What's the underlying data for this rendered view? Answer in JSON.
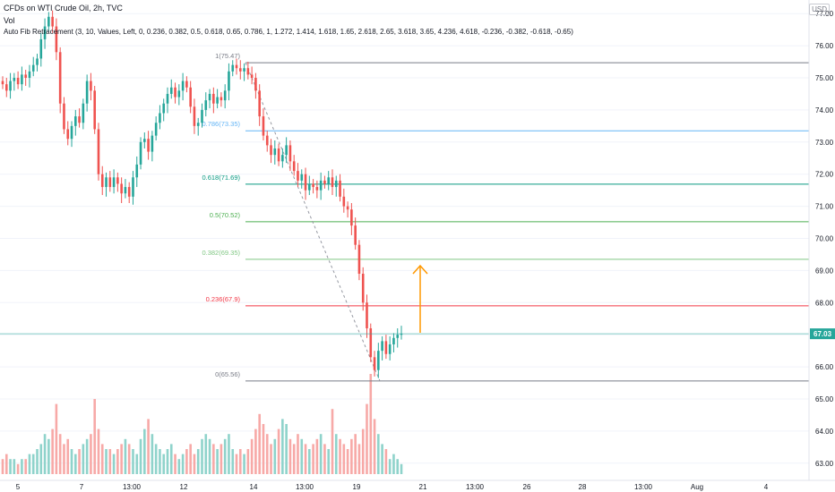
{
  "header": {
    "symbol": "CFDs on WTI Crude Oil, 2h, TVC",
    "volume_label": "Vol",
    "indicator": "Auto Fib Retracement (3, 10, Values, Left, 0, 0.236, 0.382, 0.5, 0.618, 0.65, 0.786, 1, 1.272, 1.414, 1.618, 1.65, 2.618, 2.65, 3.618, 3.65, 4.236, 4.618, -0.236, -0.382, -0.618, -0.65)"
  },
  "currency_badge": "USD",
  "colors": {
    "up": "#26a69a",
    "down": "#ef5350",
    "vol_up": "#8fd3cb",
    "vol_down": "#f7a9a7",
    "arrow": "#ff9800",
    "last_price": "#26a69a"
  },
  "chart_data": {
    "type": "candlestick",
    "ylim": [
      62.6,
      77.3
    ],
    "y_ticks": [
      "77.00",
      "76.00",
      "75.00",
      "74.00",
      "73.00",
      "72.00",
      "71.00",
      "70.00",
      "69.00",
      "68.00",
      "67.00",
      "66.00",
      "65.00",
      "64.00",
      "63.00"
    ],
    "x_ticks": [
      "5",
      "7",
      "13:00",
      "12",
      "14",
      "13:00",
      "19",
      "21",
      "13:00",
      "26",
      "28",
      "13:00",
      "Aug",
      "4"
    ],
    "last_price": 67.03,
    "last_price_label": "67.03",
    "fib_levels": [
      {
        "ratio": "1",
        "value": 75.47,
        "label": "1(75.47)",
        "color": "#787b86"
      },
      {
        "ratio": "0.786",
        "value": 73.35,
        "label": "0.786(73.35)",
        "color": "#64b5f6"
      },
      {
        "ratio": "0.618",
        "value": 71.69,
        "label": "0.618(71.69)",
        "color": "#089981"
      },
      {
        "ratio": "0.5",
        "value": 70.52,
        "label": "0.5(70.52)",
        "color": "#4caf50"
      },
      {
        "ratio": "0.382",
        "value": 69.35,
        "label": "0.382(69.35)",
        "color": "#81c784"
      },
      {
        "ratio": "0.236",
        "value": 67.9,
        "label": "0.236(67.9)",
        "color": "#f23645"
      },
      {
        "ratio": "0",
        "value": 65.56,
        "label": "0(65.56)",
        "color": "#787b86"
      }
    ],
    "closes": [
      74.8,
      74.6,
      74.9,
      75.0,
      74.8,
      75.1,
      75.0,
      75.2,
      75.4,
      75.6,
      76.2,
      76.6,
      76.9,
      76.6,
      75.8,
      74.2,
      73.4,
      73.1,
      73.5,
      73.8,
      73.6,
      74.2,
      74.9,
      74.6,
      73.4,
      72.0,
      71.6,
      71.9,
      71.6,
      71.9,
      71.7,
      71.4,
      71.6,
      71.3,
      71.9,
      72.3,
      73.0,
      73.1,
      72.7,
      73.2,
      73.6,
      73.9,
      74.2,
      74.5,
      74.7,
      74.4,
      74.6,
      74.9,
      74.7,
      74.1,
      73.5,
      73.6,
      74.0,
      74.3,
      74.5,
      74.2,
      74.4,
      74.3,
      74.6,
      75.2,
      75.4,
      75.3,
      75.2,
      75.3,
      75.1,
      75.0,
      74.6,
      73.8,
      73.2,
      72.9,
      72.6,
      72.8,
      72.4,
      72.6,
      72.9,
      72.4,
      72.1,
      71.8,
      72.0,
      71.5,
      71.7,
      71.6,
      71.5,
      71.8,
      71.7,
      71.9,
      71.6,
      71.8,
      71.3,
      71.0,
      70.9,
      70.4,
      69.8,
      68.9,
      68.0,
      67.2,
      66.3,
      65.9,
      66.5,
      66.8,
      66.4,
      66.7,
      66.9,
      67.0,
      67.03
    ],
    "volumes": [
      3,
      4,
      3,
      3,
      2,
      3,
      3,
      4,
      4,
      5,
      6,
      8,
      7,
      9,
      14,
      8,
      6,
      7,
      5,
      4,
      5,
      6,
      7,
      8,
      15,
      9,
      6,
      5,
      5,
      4,
      5,
      6,
      7,
      6,
      5,
      4,
      7,
      9,
      11,
      8,
      6,
      5,
      4,
      5,
      6,
      4,
      3,
      4,
      5,
      6,
      4,
      5,
      7,
      8,
      7,
      6,
      5,
      6,
      7,
      8,
      5,
      4,
      5,
      4,
      5,
      7,
      9,
      12,
      10,
      8,
      6,
      7,
      9,
      11,
      10,
      7,
      6,
      8,
      7,
      6,
      5,
      6,
      7,
      8,
      6,
      5,
      13,
      8,
      7,
      6,
      5,
      7,
      8,
      6,
      9,
      14,
      20,
      11,
      8,
      6,
      5,
      3,
      4,
      3,
      2
    ]
  }
}
